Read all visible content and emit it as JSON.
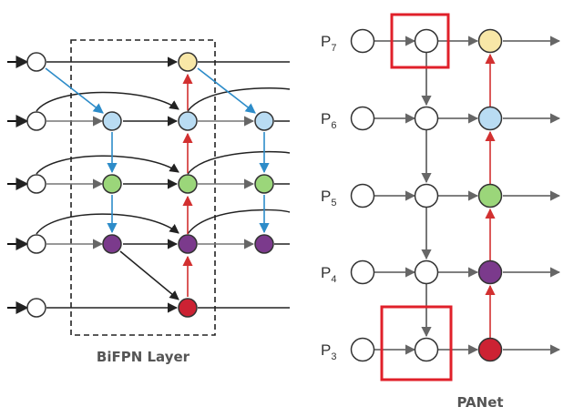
{
  "bifpn": {
    "caption": "BiFPN Layer"
  },
  "panet": {
    "caption": "PANet",
    "levels": [
      {
        "base": "P",
        "sub": "7"
      },
      {
        "base": "P",
        "sub": "6"
      },
      {
        "base": "P",
        "sub": "5"
      },
      {
        "base": "P",
        "sub": "4"
      },
      {
        "base": "P",
        "sub": "3"
      }
    ]
  },
  "colors": {
    "node_outline": "#333333",
    "node_empty": "#ffffff",
    "p7_fill": "#f8e7a7",
    "p6_fill": "#b9dcf3",
    "p5_fill": "#9bd67a",
    "p4_fill": "#7b3a8c",
    "p3_fill": "#cc2233",
    "edge_black": "#222222",
    "edge_gray": "#777777",
    "edge_blue": "#2d8cc9",
    "edge_red": "#d23030",
    "highlight_box": "#e0202a",
    "dashed_box": "#222222"
  }
}
